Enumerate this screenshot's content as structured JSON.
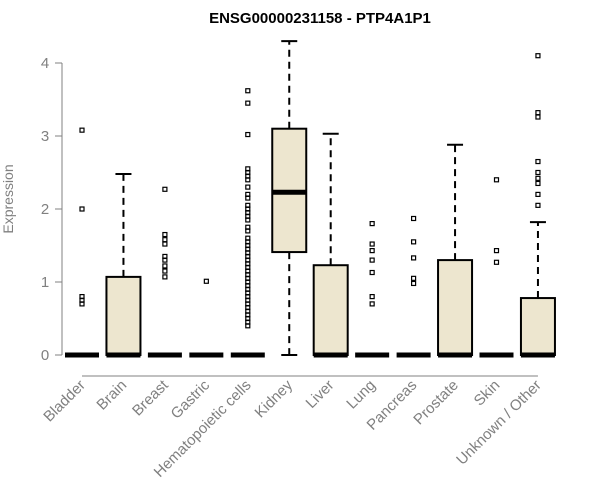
{
  "chart_data": {
    "type": "box",
    "title": "ENSG00000231158 - PTP4A1P1",
    "xlabel": "",
    "ylabel": "Expression",
    "ylim": [
      0,
      4.3
    ],
    "yticks": [
      0,
      1,
      2,
      3,
      4
    ],
    "grid": false,
    "colors": {
      "box_fill": "#ede6cf",
      "stroke": "#000000",
      "axis_text": "#808080"
    },
    "categories": [
      "Bladder",
      "Brain",
      "Breast",
      "Gastric",
      "Hematopoietic cells",
      "Kidney",
      "Liver",
      "Lung",
      "Pancreas",
      "Prostate",
      "Skin",
      "Unknown / Other"
    ],
    "boxes": [
      {
        "name": "Bladder",
        "min": 0,
        "q1": 0,
        "median": 0,
        "q3": 0,
        "max": 0,
        "outliers": [
          0.7,
          0.75,
          0.8,
          2.0,
          3.08
        ]
      },
      {
        "name": "Brain",
        "min": 0,
        "q1": 0,
        "median": 0,
        "q3": 1.07,
        "max": 2.48,
        "outliers": []
      },
      {
        "name": "Breast",
        "min": 0,
        "q1": 0,
        "median": 0,
        "q3": 0,
        "max": 0,
        "outliers": [
          1.07,
          1.15,
          1.22,
          1.3,
          1.35,
          1.52,
          1.58,
          1.65,
          2.27
        ]
      },
      {
        "name": "Gastric",
        "min": 0,
        "q1": 0,
        "median": 0,
        "q3": 0,
        "max": 0,
        "outliers": [
          1.01
        ]
      },
      {
        "name": "Hematopoietic cells",
        "min": 0,
        "q1": 0,
        "median": 0,
        "q3": 0,
        "max": 0,
        "outliers": [
          0.4,
          0.45,
          0.5,
          0.55,
          0.6,
          0.65,
          0.7,
          0.75,
          0.8,
          0.85,
          0.9,
          0.95,
          1.0,
          1.05,
          1.1,
          1.15,
          1.2,
          1.25,
          1.3,
          1.35,
          1.4,
          1.45,
          1.5,
          1.55,
          1.6,
          1.7,
          1.75,
          1.85,
          1.9,
          1.95,
          2.0,
          2.05,
          2.15,
          2.2,
          2.3,
          2.4,
          2.45,
          2.5,
          2.55,
          3.02,
          3.45,
          3.62
        ]
      },
      {
        "name": "Kidney",
        "min": 0,
        "q1": 1.41,
        "median": 2.23,
        "q3": 3.1,
        "max": 4.3,
        "outliers": []
      },
      {
        "name": "Liver",
        "min": 0,
        "q1": 0,
        "median": 0,
        "q3": 1.23,
        "max": 3.03,
        "outliers": []
      },
      {
        "name": "Lung",
        "min": 0,
        "q1": 0,
        "median": 0,
        "q3": 0,
        "max": 0,
        "outliers": [
          0.7,
          0.8,
          1.13,
          1.3,
          1.43,
          1.52,
          1.8
        ]
      },
      {
        "name": "Pancreas",
        "min": 0,
        "q1": 0,
        "median": 0,
        "q3": 0,
        "max": 0,
        "outliers": [
          0.98,
          1.05,
          1.33,
          1.55,
          1.87
        ]
      },
      {
        "name": "Prostate",
        "min": 0,
        "q1": 0,
        "median": 0,
        "q3": 1.3,
        "max": 2.88,
        "outliers": []
      },
      {
        "name": "Skin",
        "min": 0,
        "q1": 0,
        "median": 0,
        "q3": 0,
        "max": 0,
        "outliers": [
          1.27,
          1.43,
          2.4
        ]
      },
      {
        "name": "Unknown / Other",
        "min": 0,
        "q1": 0,
        "median": 0,
        "q3": 0.78,
        "max": 1.82,
        "outliers": [
          2.05,
          2.2,
          2.35,
          2.42,
          2.5,
          2.65,
          3.26,
          3.32,
          4.1
        ]
      }
    ]
  }
}
